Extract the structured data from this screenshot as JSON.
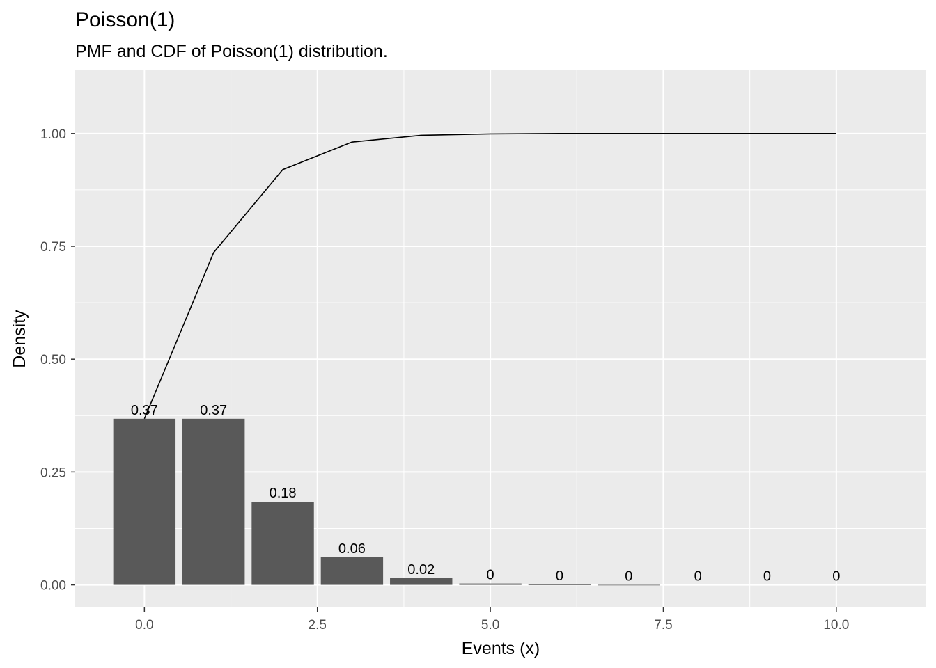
{
  "chart_data": {
    "type": "bar",
    "title": "Poisson(1)",
    "subtitle": "PMF and CDF of Poisson(1) distribution.",
    "xlabel": "Events (x)",
    "ylabel": "Density",
    "xlim": [
      -1,
      11.3
    ],
    "ylim": [
      -0.05,
      1.14
    ],
    "x_ticks": [
      0,
      2.5,
      5,
      7.5,
      10
    ],
    "x_tick_labels": [
      "0.0",
      "2.5",
      "5.0",
      "7.5",
      "10.0"
    ],
    "y_ticks": [
      0,
      0.25,
      0.5,
      0.75,
      1.0
    ],
    "y_tick_labels": [
      "0.00",
      "0.25",
      "0.50",
      "0.75",
      "1.00"
    ],
    "grid": true,
    "panel_color": "#ebebeb",
    "bar_color": "#595959",
    "line_color": "#000000",
    "x": [
      0,
      1,
      2,
      3,
      4,
      5,
      6,
      7,
      8,
      9,
      10
    ],
    "pmf": [
      0.368,
      0.368,
      0.184,
      0.061,
      0.015,
      0.003,
      0.0005,
      0.0001,
      0.0,
      0.0,
      0.0
    ],
    "pmf_labels": [
      "0.37",
      "0.37",
      "0.18",
      "0.06",
      "0.02",
      "0",
      "0",
      "0",
      "0",
      "0",
      "0"
    ],
    "cdf": [
      0.368,
      0.736,
      0.92,
      0.981,
      0.996,
      0.999,
      1.0,
      1.0,
      1.0,
      1.0,
      1.0
    ]
  }
}
